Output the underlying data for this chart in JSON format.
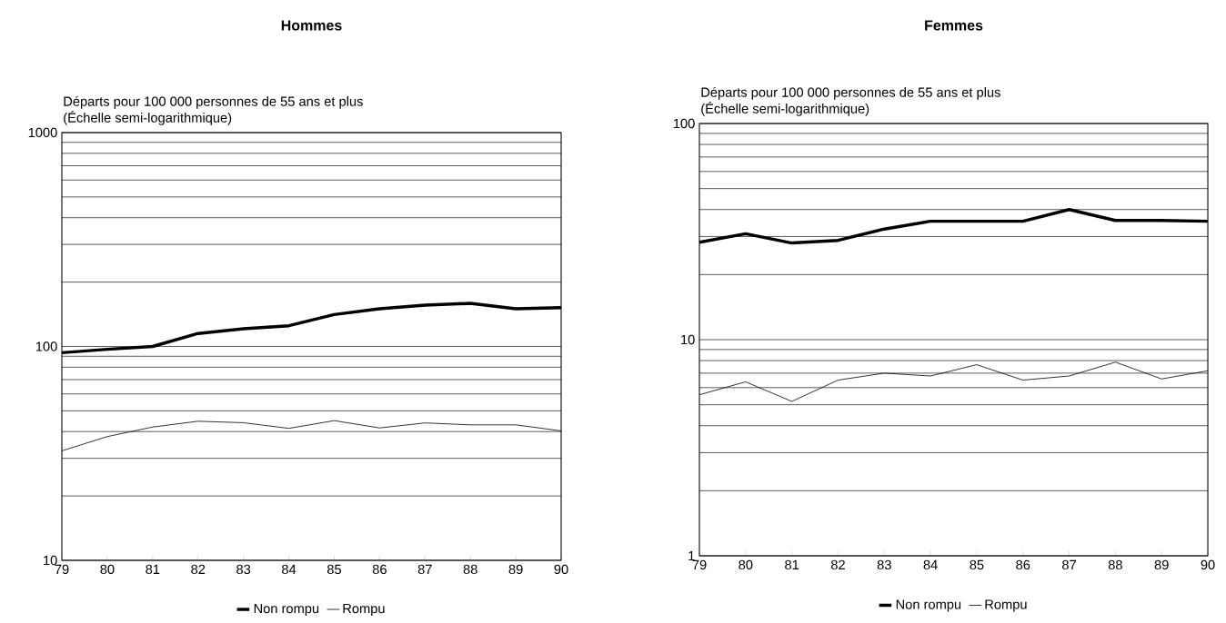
{
  "chart_data": [
    {
      "type": "line",
      "title": "Hommes",
      "ylabel": "Départs pour 100 000 personnes de 55 ans et plus",
      "annotations": [
        "(Échelle semi-logarithmique)"
      ],
      "categories": [
        "79",
        "80",
        "81",
        "82",
        "83",
        "84",
        "85",
        "86",
        "87",
        "88",
        "89",
        "90"
      ],
      "series": [
        {
          "name": "Non rompu",
          "color": "#000000",
          "values": [
            93.5,
            97,
            100,
            115,
            121,
            125,
            141,
            150,
            156,
            159,
            150,
            152
          ]
        },
        {
          "name": "Rompu",
          "color": "#000000",
          "values": [
            32.5,
            37.9,
            42,
            44.7,
            44,
            41.4,
            45,
            41.6,
            43.9,
            43,
            43,
            40.3
          ]
        }
      ],
      "log": "y",
      "ylim": [
        10,
        1000
      ],
      "yticks": [
        10,
        {
          "value": 20,
          "label": null
        },
        {
          "value": 30,
          "label": null
        },
        {
          "value": 40,
          "label": null
        },
        {
          "value": 50,
          "label": null
        },
        {
          "value": 60,
          "label": null
        },
        {
          "value": 70,
          "label": null
        },
        {
          "value": 80,
          "label": null
        },
        {
          "value": 90,
          "label": null
        },
        100,
        {
          "value": 200,
          "label": null
        },
        {
          "value": 300,
          "label": null
        },
        {
          "value": 400,
          "label": null
        },
        {
          "value": 500,
          "label": null
        },
        {
          "value": 600,
          "label": null
        },
        {
          "value": 700,
          "label": null
        },
        {
          "value": 800,
          "label": null
        },
        {
          "value": 900,
          "label": null
        },
        1000
      ],
      "grid": "y",
      "legend": "bottom",
      "marker": "none",
      "line_style": "solid"
    },
    {
      "type": "line",
      "title": "Femmes",
      "ylabel": "Départs pour 100 000 personnes de 55 ans et plus",
      "annotations": [
        "(Échelle semi-logarithmique)"
      ],
      "categories": [
        "79",
        "80",
        "81",
        "82",
        "83",
        "84",
        "85",
        "86",
        "87",
        "88",
        "89",
        "90"
      ],
      "series": [
        {
          "name": "Non rompu",
          "color": "#000000",
          "values": [
            28.2,
            30.9,
            28,
            28.8,
            32.5,
            35.3,
            35.3,
            35.3,
            40,
            35.6,
            35.6,
            35.3
          ]
        },
        {
          "name": "Rompu",
          "color": "#000000",
          "values": [
            5.56,
            6.38,
            5.18,
            6.5,
            7,
            6.79,
            7.66,
            6.5,
            6.79,
            7.87,
            6.58,
            7.18
          ]
        }
      ],
      "log": "y",
      "ylim": [
        1,
        100
      ],
      "yticks": [
        1,
        {
          "value": 2,
          "label": null
        },
        {
          "value": 3,
          "label": null
        },
        {
          "value": 4,
          "label": null
        },
        {
          "value": 5,
          "label": null
        },
        {
          "value": 6,
          "label": null
        },
        {
          "value": 7,
          "label": null
        },
        {
          "value": 8,
          "label": null
        },
        {
          "value": 9,
          "label": null
        },
        10,
        {
          "value": 20,
          "label": null
        },
        {
          "value": 30,
          "label": null
        },
        {
          "value": 40,
          "label": null
        },
        {
          "value": 50,
          "label": null
        },
        {
          "value": 60,
          "label": null
        },
        {
          "value": 70,
          "label": null
        },
        {
          "value": 80,
          "label": null
        },
        {
          "value": 90,
          "label": null
        },
        100
      ],
      "grid": "y",
      "legend": "bottom",
      "marker": "none",
      "line_style": "solid"
    }
  ]
}
